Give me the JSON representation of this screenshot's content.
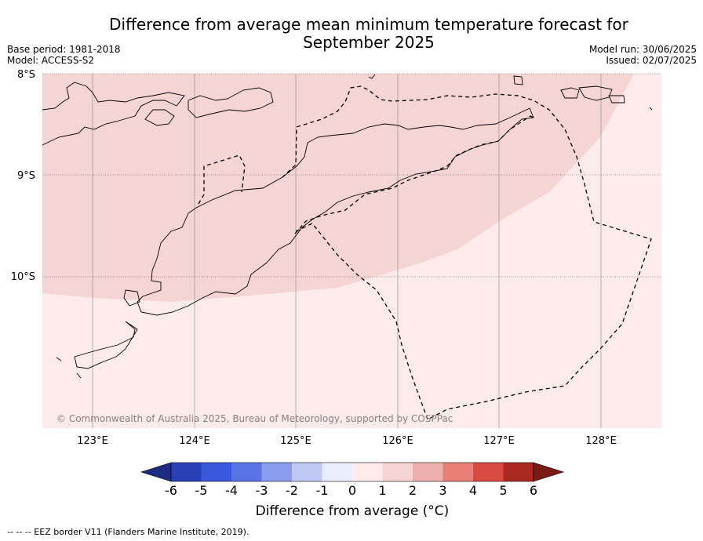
{
  "title_line1": "Difference from average mean minimum temperature forecast for",
  "title_line2": "September 2025",
  "base_period": "Base period: 1981-2018",
  "model": "Model: ACCESS-S2",
  "model_run": "Model run: 30/06/2025",
  "issued": "Issued: 02/07/2025",
  "copyright": "© Commonwealth of Australia 2025, Bureau of Meteorology, supported by COSPPac",
  "lat_labels": [
    "8°S",
    "9°S",
    "10°S"
  ],
  "lon_labels": [
    "123°E",
    "124°E",
    "125°E",
    "126°E",
    "127°E",
    "128°E"
  ],
  "colorbar": {
    "title": "Difference from average (°C)",
    "ticks": [
      "-6",
      "-5",
      "-4",
      "-3",
      "-2",
      "-1",
      "0",
      "1",
      "2",
      "3",
      "4",
      "5",
      "6"
    ],
    "colors": [
      "#1c2b80",
      "#2a40b8",
      "#3a58dc",
      "#5a74e6",
      "#8a9ced",
      "#c0c8f5",
      "#ebeefc",
      "#fcebea",
      "#f5d5d3",
      "#eeb0ac",
      "#e88078",
      "#d94a42",
      "#aa2a22",
      "#7a1a14"
    ]
  },
  "map": {
    "land_outline_color": "#000000",
    "eez_color": "#000000",
    "anomaly_band_1_2_color": "#f5d5d3",
    "anomaly_band_0_1_color": "#fcebea"
  },
  "footer": "--  --  -- EEZ border V11 (Flanders Marine Institute, 2019)."
}
